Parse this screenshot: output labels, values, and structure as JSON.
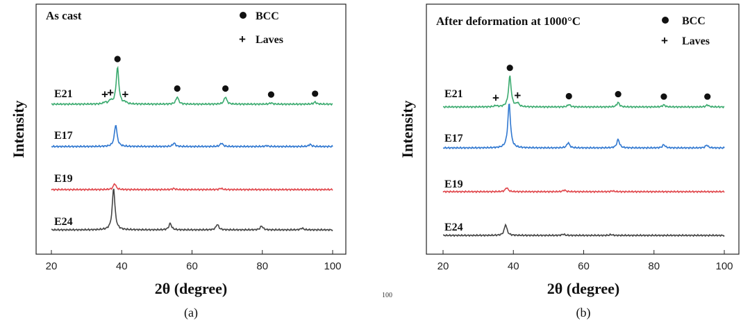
{
  "chart_data": [
    {
      "type": "line",
      "title": "As cast",
      "sublabel": "(a)",
      "xlabel": "2θ (degree)",
      "ylabel": "Intensity",
      "xlim": [
        20,
        100
      ],
      "xticks": [
        20,
        40,
        60,
        80,
        100
      ],
      "legend": {
        "position": "top-right",
        "entries": [
          {
            "symbol": "●",
            "label": "BCC"
          },
          {
            "symbol": "+",
            "label": "Laves"
          }
        ]
      },
      "series": [
        {
          "name": "E21",
          "color": "#3aaa6e",
          "baseline": 0,
          "peaks": [
            [
              35.2,
              0.4
            ],
            [
              36.8,
              0.8
            ],
            [
              38.8,
              8.6
            ],
            [
              41.0,
              0.4
            ],
            [
              55.8,
              1.7
            ],
            [
              69.5,
              1.7
            ],
            [
              82.5,
              0.3
            ],
            [
              95.0,
              0.5
            ]
          ],
          "markers": [
            {
              "x": 38.8,
              "s": "●"
            },
            {
              "x": 55.8,
              "s": "●"
            },
            {
              "x": 69.5,
              "s": "●"
            },
            {
              "x": 82.5,
              "s": "●"
            },
            {
              "x": 95.0,
              "s": "●"
            },
            {
              "x": 35.2,
              "s": "+"
            },
            {
              "x": 36.8,
              "s": "+"
            },
            {
              "x": 41.0,
              "s": "+"
            }
          ]
        },
        {
          "name": "E17",
          "color": "#2f77d0",
          "baseline": 0,
          "peaks": [
            [
              38.3,
              5.1
            ],
            [
              54.9,
              0.8
            ],
            [
              68.4,
              0.8
            ],
            [
              81.2,
              0.2
            ],
            [
              93.6,
              0.5
            ]
          ],
          "markers": []
        },
        {
          "name": "E19",
          "color": "#e0474c",
          "baseline": 0,
          "peaks": [
            [
              38.0,
              1.4
            ],
            [
              54.8,
              0.25
            ],
            [
              68.2,
              0.3
            ]
          ],
          "markers": []
        },
        {
          "name": "E24",
          "color": "#444444",
          "baseline": 0,
          "peaks": [
            [
              37.7,
              9.8
            ],
            [
              53.8,
              1.5
            ],
            [
              67.2,
              1.3
            ],
            [
              79.8,
              0.9
            ],
            [
              91.3,
              0.4
            ]
          ],
          "markers": []
        }
      ]
    },
    {
      "type": "line",
      "title": "After deformation at 1000°C",
      "sublabel": "(b)",
      "xlabel": "2θ (degree)",
      "ylabel": "Intensity",
      "xlim": [
        20,
        100
      ],
      "xticks": [
        20,
        40,
        60,
        80,
        100
      ],
      "legend": {
        "position": "top-right",
        "entries": [
          {
            "symbol": "●",
            "label": "BCC"
          },
          {
            "symbol": "+",
            "label": "Laves"
          }
        ]
      },
      "series": [
        {
          "name": "E21",
          "color": "#3aaa6e",
          "baseline": 0,
          "peaks": [
            [
              35.0,
              0.3
            ],
            [
              39.0,
              7.6
            ],
            [
              41.2,
              0.9
            ],
            [
              55.8,
              0.6
            ],
            [
              69.8,
              1.1
            ],
            [
              82.8,
              0.5
            ],
            [
              95.2,
              0.5
            ]
          ],
          "markers": [
            {
              "x": 39.0,
              "s": "●"
            },
            {
              "x": 55.8,
              "s": "●"
            },
            {
              "x": 69.8,
              "s": "●"
            },
            {
              "x": 82.8,
              "s": "●"
            },
            {
              "x": 95.2,
              "s": "●"
            },
            {
              "x": 35.0,
              "s": "+"
            },
            {
              "x": 41.2,
              "s": "+"
            }
          ]
        },
        {
          "name": "E17",
          "color": "#2f77d0",
          "baseline": 0,
          "peaks": [
            [
              38.8,
              11.0
            ],
            [
              55.6,
              1.3
            ],
            [
              69.8,
              2.1
            ],
            [
              82.8,
              0.8
            ],
            [
              95.0,
              0.7
            ]
          ],
          "markers": []
        },
        {
          "name": "E19",
          "color": "#e0474c",
          "baseline": 0,
          "peaks": [
            [
              38.1,
              1.0
            ],
            [
              54.5,
              0.4
            ],
            [
              68.2,
              0.2
            ]
          ],
          "markers": []
        },
        {
          "name": "E24",
          "color": "#444444",
          "baseline": 0,
          "peaks": [
            [
              37.8,
              2.7
            ],
            [
              54.2,
              0.3
            ],
            [
              67.8,
              0.2
            ]
          ],
          "markers": []
        }
      ]
    }
  ],
  "footer": {
    "text": "100"
  }
}
